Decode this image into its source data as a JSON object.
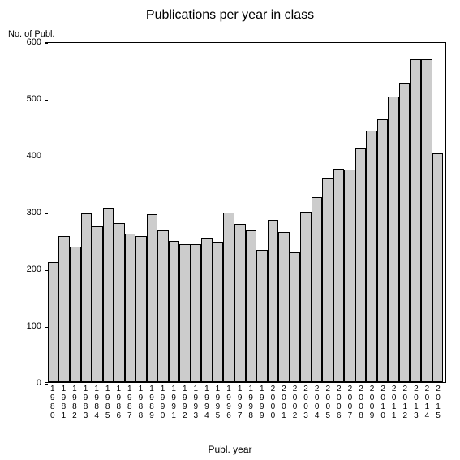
{
  "chart": {
    "type": "bar",
    "title": "Publications per year in class",
    "title_fontsize": 16,
    "ylabel": "No. of Publ.",
    "xlabel": "Publ. year",
    "label_fontsize": 12,
    "background_color": "#ffffff",
    "border_color": "#000000",
    "bar_fill_color": "#cccccc",
    "bar_border_color": "#000000",
    "tick_fontsize": 11,
    "ylim": [
      0,
      600
    ],
    "ytick_step": 100,
    "yticks": [
      0,
      100,
      200,
      300,
      400,
      500,
      600
    ],
    "categories": [
      "1980",
      "1981",
      "1982",
      "1983",
      "1984",
      "1985",
      "1986",
      "1987",
      "1988",
      "1989",
      "1990",
      "1991",
      "1992",
      "1993",
      "1994",
      "1995",
      "1996",
      "1997",
      "1998",
      "1999",
      "2000",
      "2001",
      "2002",
      "2003",
      "2004",
      "2005",
      "2006",
      "2007",
      "2008",
      "2009",
      "2010",
      "2011",
      "2012",
      "2013",
      "2014",
      "2015"
    ],
    "values": [
      212,
      258,
      240,
      298,
      276,
      308,
      282,
      263,
      258,
      297,
      268,
      250,
      244,
      244,
      256,
      248,
      300,
      280,
      268,
      234,
      287,
      266,
      230,
      302,
      328,
      360,
      378,
      376,
      413,
      445,
      465,
      505,
      530,
      572,
      572,
      405
    ]
  }
}
